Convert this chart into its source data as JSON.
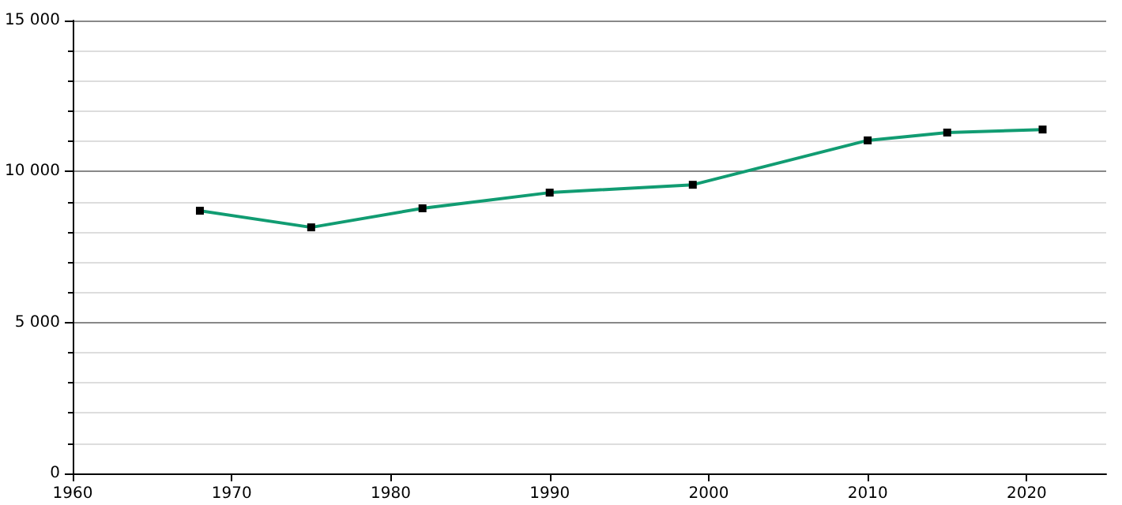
{
  "chart_data": {
    "type": "line",
    "x": [
      1968,
      1975,
      1982,
      1990,
      1999,
      2010,
      2015,
      2021
    ],
    "series": [
      {
        "color": "#119c72",
        "values": [
          8700,
          8150,
          8780,
          9300,
          9560,
          11030,
          11290,
          11390
        ]
      }
    ],
    "xlim": [
      1960,
      2025
    ],
    "xticks": [
      1960,
      1970,
      1980,
      1990,
      2000,
      2010,
      2020
    ],
    "ylim": [
      0,
      15000
    ],
    "yticks": [
      {
        "value": 0,
        "label": "0"
      },
      {
        "value": 5000,
        "label": "5 000"
      },
      {
        "value": 10000,
        "label": "10 000"
      },
      {
        "value": 15000,
        "label": "15 000"
      }
    ],
    "grid": "y",
    "marker": "square",
    "line_style": "solid"
  }
}
